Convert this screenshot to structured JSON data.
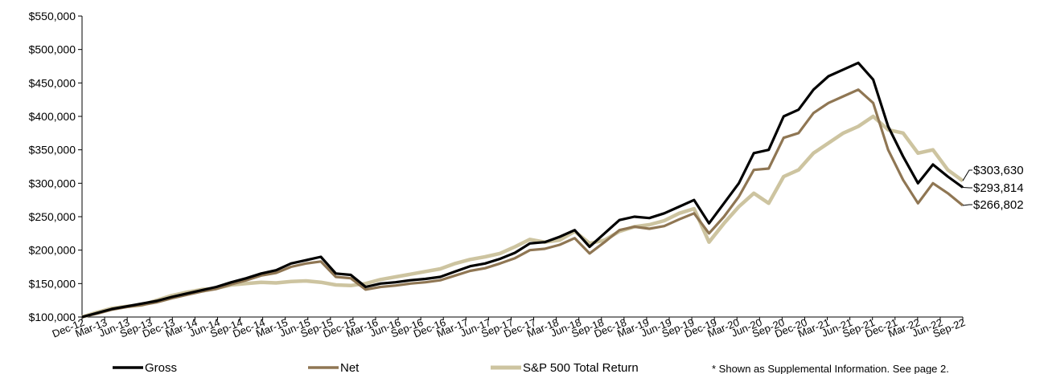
{
  "chart_data": {
    "type": "line",
    "title": "",
    "xlabel": "",
    "ylabel": "",
    "ylim": [
      100000,
      550000
    ],
    "y_ticks": [
      "$100,000",
      "$150,000",
      "$200,000",
      "$250,000",
      "$300,000",
      "$350,000",
      "$400,000",
      "$450,000",
      "$500,000",
      "$550,000"
    ],
    "x_tick_labels": [
      "Dec-12",
      "Mar-13",
      "Jun-13",
      "Sep-13",
      "Dec-13",
      "Mar-14",
      "Jun-14",
      "Sep-14",
      "Dec-14",
      "Mar-15",
      "Jun-15",
      "Sep-15",
      "Dec-15",
      "Mar-16",
      "Jun-16",
      "Sep-16",
      "Dec-16",
      "Mar-17",
      "Jun-17",
      "Sep-17",
      "Dec-17",
      "Mar-18",
      "Jun-18",
      "Sep-18",
      "Dec-18",
      "Mar-19",
      "Jun-19",
      "Sep-19",
      "Dec-19",
      "Mar-20",
      "Jun-20",
      "Sep-20",
      "Dec-20",
      "Mar-21",
      "Jun-21",
      "Sep-21",
      "Dec-21",
      "Mar-22",
      "Jun-22",
      "Sep-22"
    ],
    "grid": false,
    "legend_position": "bottom",
    "series": [
      {
        "name": "Gross",
        "color": "#000000",
        "end_label": "$293,814",
        "values": [
          100000,
          106000,
          112000,
          116000,
          120000,
          124000,
          130000,
          135000,
          140000,
          145000,
          152000,
          158000,
          165000,
          170000,
          180000,
          185000,
          190000,
          165000,
          163000,
          145000,
          150000,
          152000,
          155000,
          157000,
          160000,
          168000,
          176000,
          180000,
          187000,
          196000,
          210000,
          212000,
          220000,
          230000,
          205000,
          225000,
          245000,
          250000,
          248000,
          255000,
          265000,
          275000,
          240000,
          270000,
          300000,
          345000,
          350000,
          400000,
          410000,
          440000,
          460000,
          470000,
          480000,
          455000,
          385000,
          340000,
          300000,
          328000,
          310000,
          293814
        ]
      },
      {
        "name": "Net",
        "color": "#8f7653",
        "end_label": "$266,802",
        "values": [
          100000,
          105000,
          111000,
          115000,
          118000,
          122000,
          128000,
          133000,
          138000,
          142000,
          149000,
          155000,
          162000,
          166000,
          175000,
          180000,
          183000,
          160000,
          158000,
          141000,
          145000,
          147000,
          150000,
          152000,
          155000,
          162000,
          169000,
          173000,
          180000,
          188000,
          200000,
          202000,
          208000,
          218000,
          195000,
          212000,
          230000,
          235000,
          232000,
          236000,
          246000,
          255000,
          225000,
          250000,
          280000,
          320000,
          322000,
          368000,
          375000,
          405000,
          420000,
          430000,
          440000,
          420000,
          350000,
          305000,
          270000,
          300000,
          285000,
          266802
        ]
      },
      {
        "name": "S&P 500 Total Return",
        "color": "#cdc4a0",
        "end_label": "$303,630",
        "values": [
          100000,
          107000,
          113000,
          116000,
          118000,
          125000,
          132000,
          137000,
          141000,
          143000,
          148000,
          150000,
          152000,
          151000,
          153000,
          154000,
          152000,
          148000,
          147000,
          150000,
          156000,
          160000,
          164000,
          168000,
          172000,
          180000,
          186000,
          190000,
          195000,
          205000,
          216000,
          212000,
          215000,
          228000,
          210000,
          215000,
          228000,
          235000,
          238000,
          244000,
          255000,
          262000,
          212000,
          240000,
          265000,
          285000,
          270000,
          310000,
          320000,
          345000,
          360000,
          375000,
          385000,
          400000,
          380000,
          375000,
          345000,
          350000,
          320000,
          303630
        ]
      }
    ]
  },
  "footnote": "* Shown as Supplemental Information.  See page 2."
}
